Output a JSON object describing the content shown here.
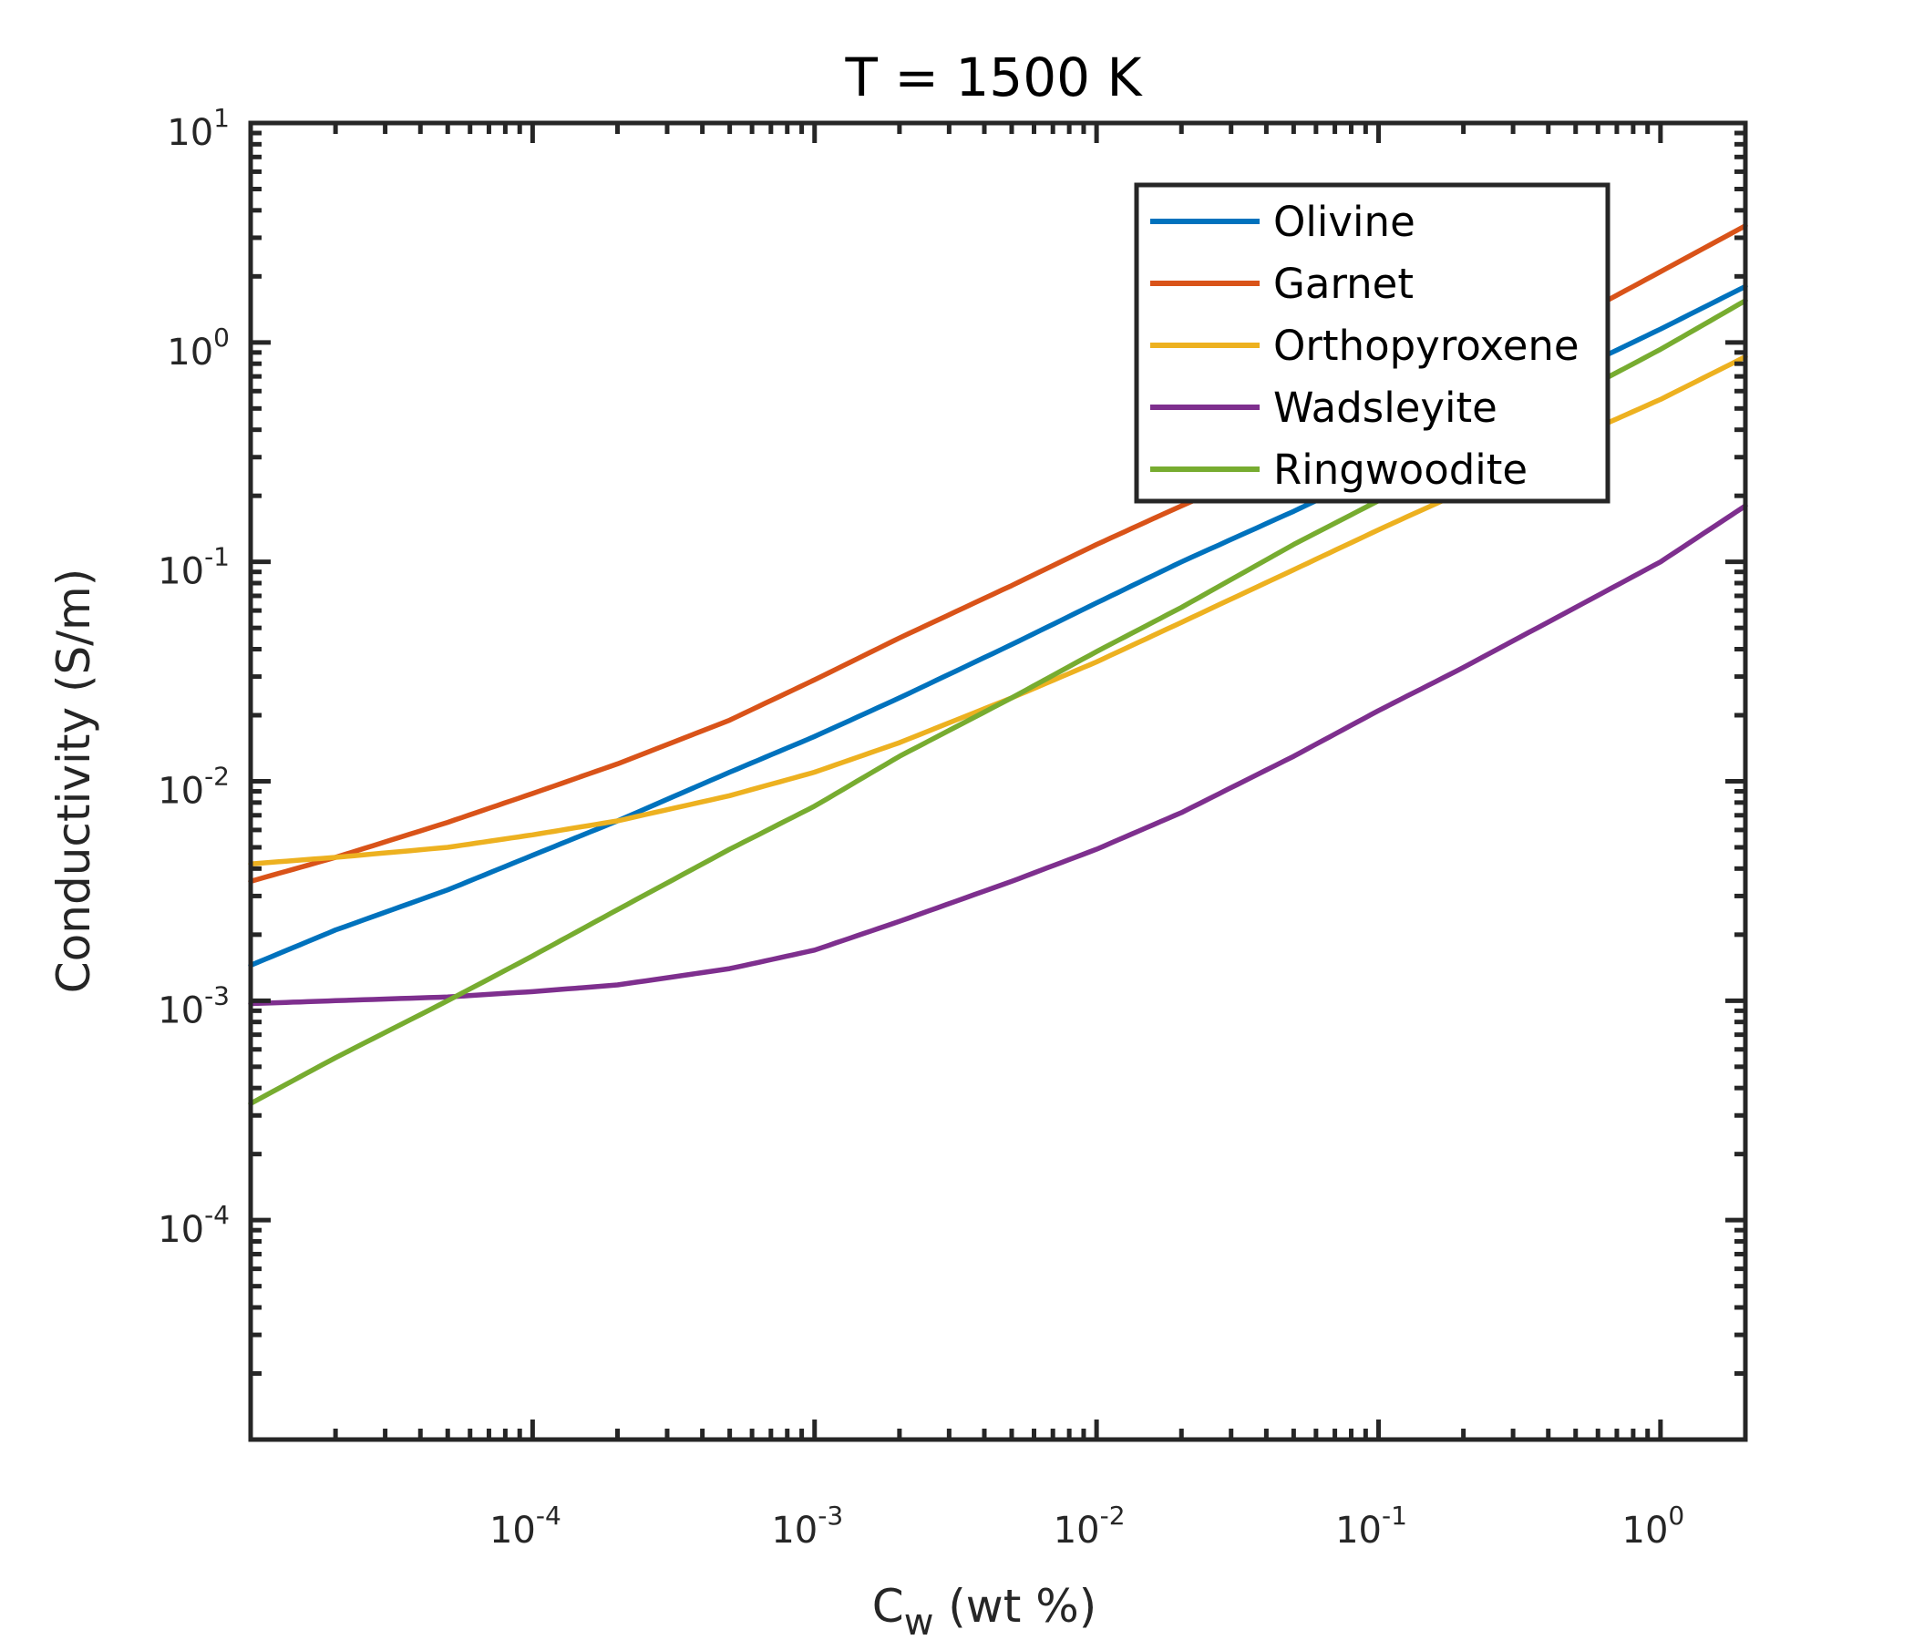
{
  "chart_data": {
    "type": "line",
    "title": "T = 1500 K",
    "xlabel": {
      "main": "C",
      "sub": "w",
      "suffix": " (wt %)"
    },
    "ylabel": "Conductivity (S/m)",
    "xscale": "log",
    "yscale": "log",
    "xlim": [
      1e-05,
      2
    ],
    "ylim": [
      1e-05,
      10
    ],
    "x_ticks": [
      {
        "base": "10",
        "exp": "-4",
        "value": 0.0001
      },
      {
        "base": "10",
        "exp": "-3",
        "value": 0.001
      },
      {
        "base": "10",
        "exp": "-2",
        "value": 0.01
      },
      {
        "base": "10",
        "exp": "-1",
        "value": 0.1
      },
      {
        "base": "10",
        "exp": "0",
        "value": 1
      }
    ],
    "y_ticks": [
      {
        "base": "10",
        "exp": "1",
        "value": 10
      },
      {
        "base": "10",
        "exp": "0",
        "value": 1
      },
      {
        "base": "10",
        "exp": "-1",
        "value": 0.1
      },
      {
        "base": "10",
        "exp": "-2",
        "value": 0.01
      },
      {
        "base": "10",
        "exp": "-3",
        "value": 0.001
      },
      {
        "base": "10",
        "exp": "-4",
        "value": 0.0001
      }
    ],
    "grid": false,
    "legend_position": "top-right",
    "x": [
      1e-05,
      2e-05,
      5e-05,
      0.0001,
      0.0002,
      0.0005,
      0.001,
      0.002,
      0.005,
      0.01,
      0.02,
      0.05,
      0.1,
      0.2,
      0.5,
      1,
      2
    ],
    "series": [
      {
        "name": "Olivine",
        "color": "#0072BD",
        "values": [
          0.00145,
          0.0021,
          0.0032,
          0.0046,
          0.0066,
          0.011,
          0.016,
          0.024,
          0.042,
          0.065,
          0.1,
          0.17,
          0.26,
          0.42,
          0.75,
          1.15,
          1.8
        ]
      },
      {
        "name": "Garnet",
        "color": "#D95319",
        "values": [
          0.0035,
          0.0045,
          0.0065,
          0.0088,
          0.012,
          0.019,
          0.029,
          0.045,
          0.078,
          0.12,
          0.18,
          0.3,
          0.46,
          0.7,
          1.3,
          2.1,
          3.4
        ]
      },
      {
        "name": "Orthopyroxene",
        "color": "#EDB120",
        "values": [
          0.0042,
          0.0045,
          0.005,
          0.0057,
          0.0066,
          0.0086,
          0.011,
          0.015,
          0.024,
          0.035,
          0.053,
          0.092,
          0.14,
          0.21,
          0.37,
          0.55,
          0.86
        ]
      },
      {
        "name": "Wadsleyite",
        "color": "#7E2F8E",
        "values": [
          0.00097,
          0.001,
          0.00104,
          0.0011,
          0.00118,
          0.0014,
          0.0017,
          0.0023,
          0.0035,
          0.0049,
          0.0072,
          0.013,
          0.021,
          0.033,
          0.062,
          0.1,
          0.18
        ]
      },
      {
        "name": "Ringwoodite",
        "color": "#77AC30",
        "values": [
          0.00034,
          0.00055,
          0.001,
          0.0016,
          0.0026,
          0.0049,
          0.0077,
          0.013,
          0.024,
          0.039,
          0.062,
          0.12,
          0.19,
          0.3,
          0.58,
          0.93,
          1.55
        ]
      }
    ]
  }
}
